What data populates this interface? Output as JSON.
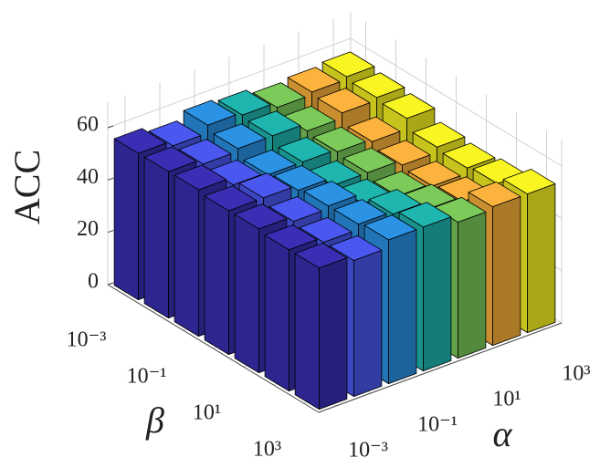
{
  "chart_data": {
    "type": "bar3",
    "xlabel": "α",
    "ylabel": "β",
    "zlabel": "ACC",
    "x_categories": [
      "10⁻³",
      null,
      "10⁻¹",
      null,
      "10¹",
      null,
      "10³"
    ],
    "y_categories": [
      "10⁻³",
      null,
      "10⁻¹",
      null,
      "10¹",
      null,
      "10³"
    ],
    "series": [
      {
        "color": "#3a2fb4",
        "values": [
          56,
          56,
          56,
          55,
          55,
          54,
          54
        ]
      },
      {
        "color": "#4a58f0",
        "values": [
          54,
          54,
          53,
          55,
          53,
          52,
          52
        ]
      },
      {
        "color": "#2b92e4",
        "values": [
          57,
          55,
          52,
          53,
          54,
          54,
          55
        ]
      },
      {
        "color": "#20b6b0",
        "values": [
          56,
          55,
          52,
          50,
          50,
          53,
          55
        ]
      },
      {
        "color": "#7ccb5a",
        "values": [
          54,
          52,
          51,
          50,
          48,
          50,
          52
        ]
      },
      {
        "color": "#fbb33d",
        "values": [
          55,
          54,
          50,
          48,
          47,
          48,
          53
        ]
      },
      {
        "color": "#f8f523",
        "values": [
          56,
          55,
          54,
          50,
          49,
          50,
          53
        ]
      }
    ],
    "zlim": [
      0,
      70
    ],
    "zticks": [
      0,
      20,
      40,
      60
    ],
    "grid": true
  }
}
